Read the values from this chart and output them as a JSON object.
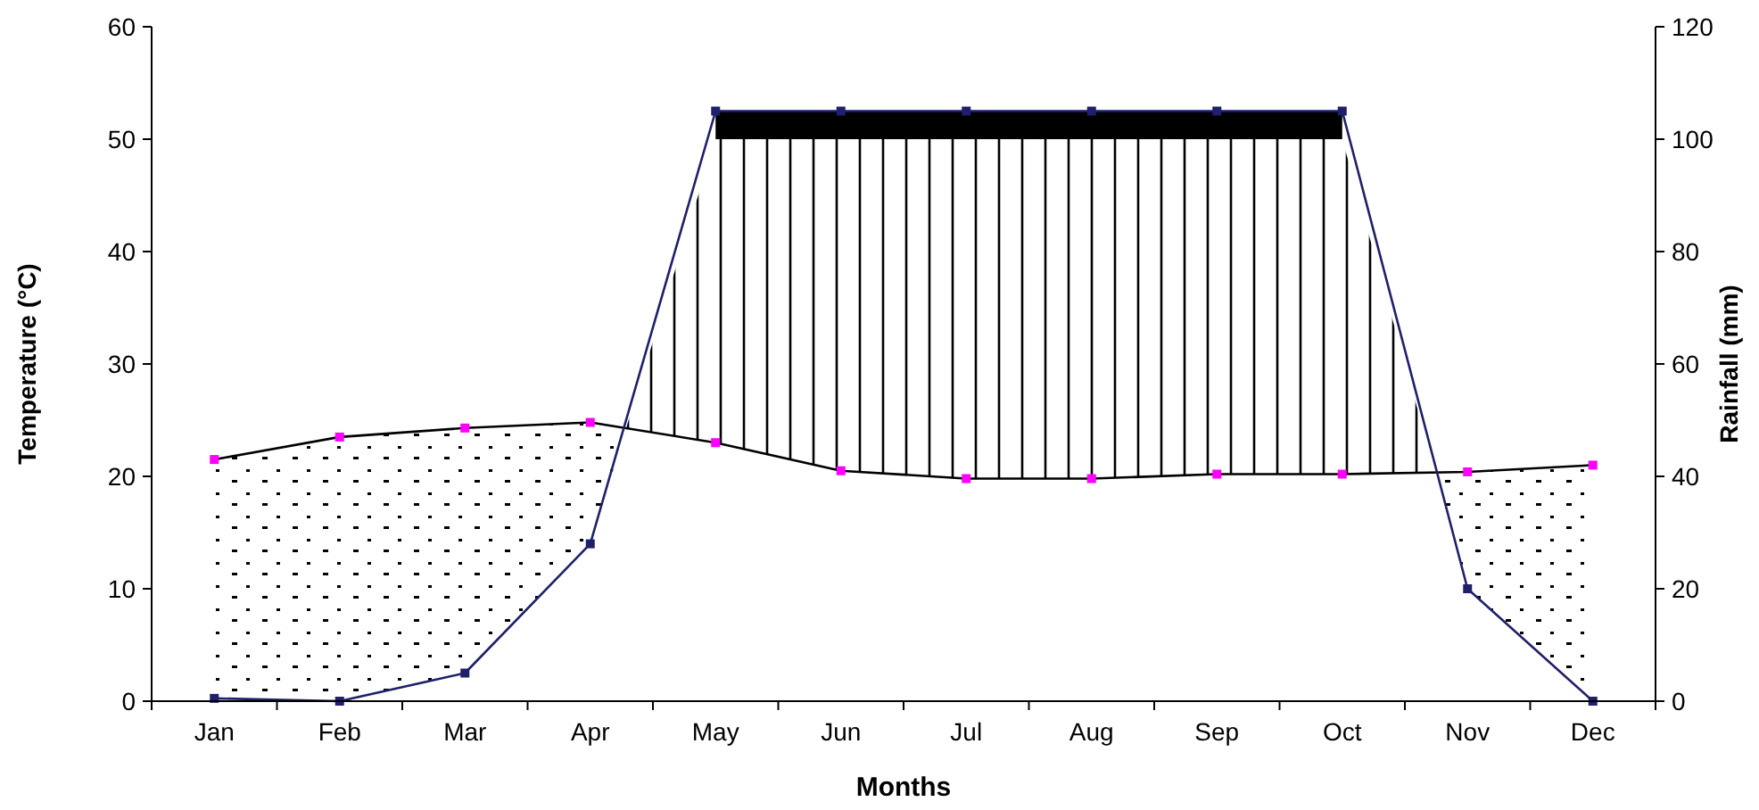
{
  "chart_data": {
    "type": "line",
    "xlabel": "Months",
    "ylabel": "Temperature (°C)",
    "y2label": "Rainfall (mm)",
    "categories": [
      "Jan",
      "Feb",
      "Mar",
      "Apr",
      "May",
      "Jun",
      "Jul",
      "Aug",
      "Sep",
      "Oct",
      "Nov",
      "Dec"
    ],
    "series": [
      {
        "color": "#000000",
        "values": [
          21.5,
          23.5,
          24.3,
          24.8,
          23,
          20.5,
          19.8,
          19.8,
          20.2,
          20.2,
          20.4,
          21
        ]
      },
      {
        "color": "#1f1f6b",
        "axis": "y2",
        "values": [
          0.5,
          0,
          5,
          28,
          105,
          105,
          105,
          105,
          105,
          105,
          20,
          0
        ]
      }
    ],
    "ylim": [
      0,
      60
    ],
    "yticks": [
      0,
      10,
      20,
      30,
      40,
      50,
      60
    ],
    "y2lim": [
      0,
      120
    ],
    "y2ticks": [
      0,
      20,
      40,
      60,
      80,
      100,
      120
    ],
    "marker": "square",
    "grid": false
  }
}
